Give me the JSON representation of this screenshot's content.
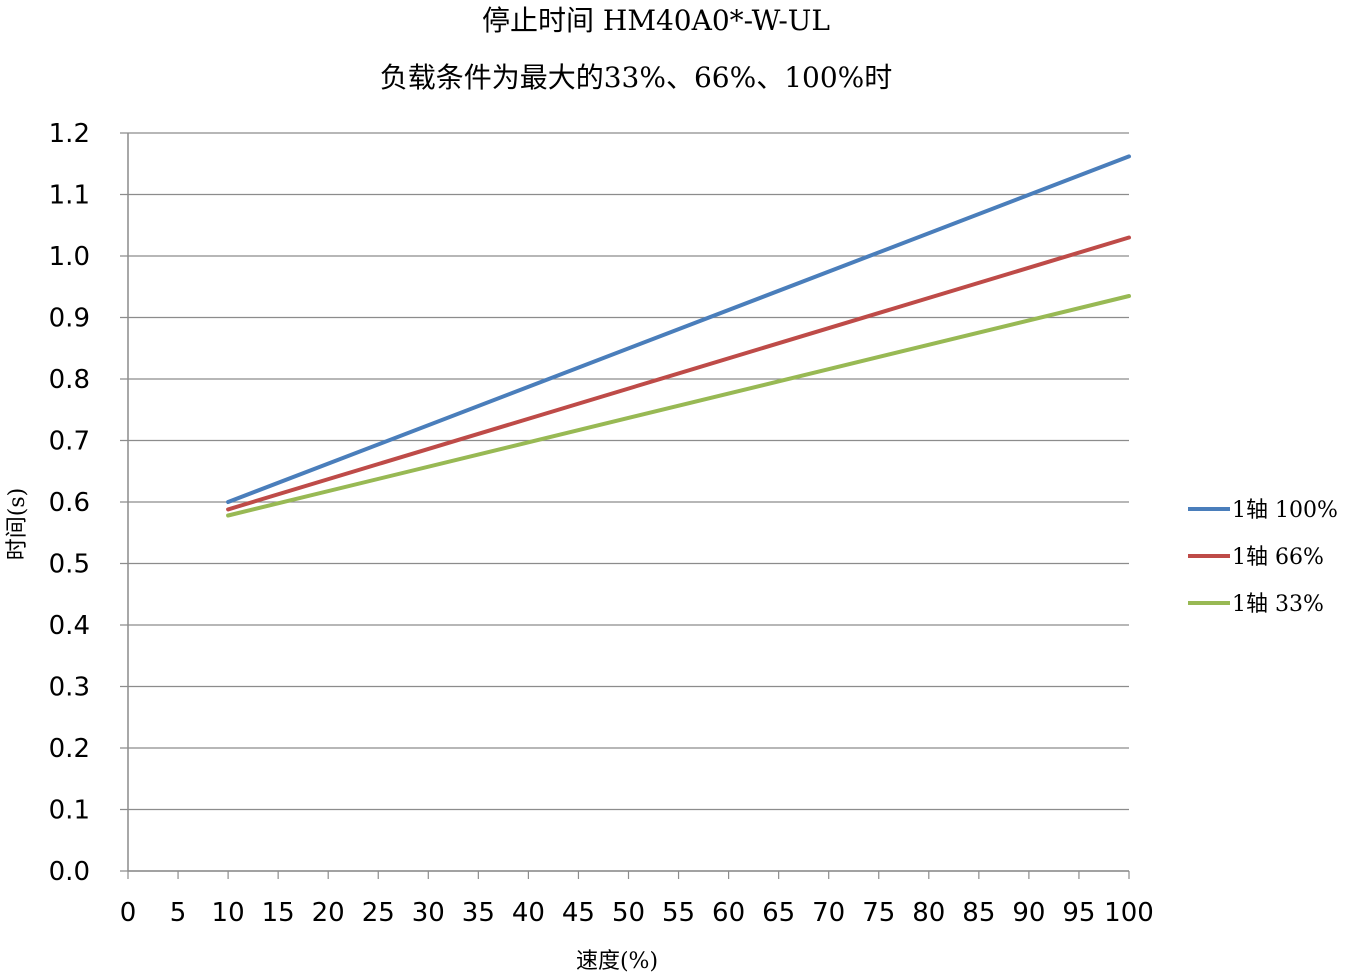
{
  "chart_data": {
    "type": "line",
    "title": "停止时间 HM40A0*-W-UL",
    "subtitle": "负载条件为最大的33%、66%、100%时",
    "xlabel": "速度(%)",
    "ylabel": "时间(s)",
    "xlim": [
      0,
      100
    ],
    "ylim": [
      0,
      1.2
    ],
    "x_ticks": [
      "0",
      "5",
      "10",
      "15",
      "20",
      "25",
      "30",
      "35",
      "40",
      "45",
      "50",
      "55",
      "60",
      "65",
      "70",
      "75",
      "80",
      "85",
      "90",
      "95",
      "100"
    ],
    "y_ticks": [
      "0.0",
      "0.1",
      "0.2",
      "0.3",
      "0.4",
      "0.5",
      "0.6",
      "0.7",
      "0.8",
      "0.9",
      "1.0",
      "1.1",
      "1.2"
    ],
    "grid": true,
    "legend_position": "right",
    "series": [
      {
        "name": "1轴 100%",
        "color": "#4a7ebb",
        "x": [
          10,
          100
        ],
        "y": [
          0.6,
          1.162
        ]
      },
      {
        "name": "1轴 66%",
        "color": "#be4b48",
        "x": [
          10,
          100
        ],
        "y": [
          0.588,
          1.03
        ]
      },
      {
        "name": "1轴 33%",
        "color": "#98b954",
        "x": [
          10,
          100
        ],
        "y": [
          0.578,
          0.935
        ]
      }
    ]
  }
}
